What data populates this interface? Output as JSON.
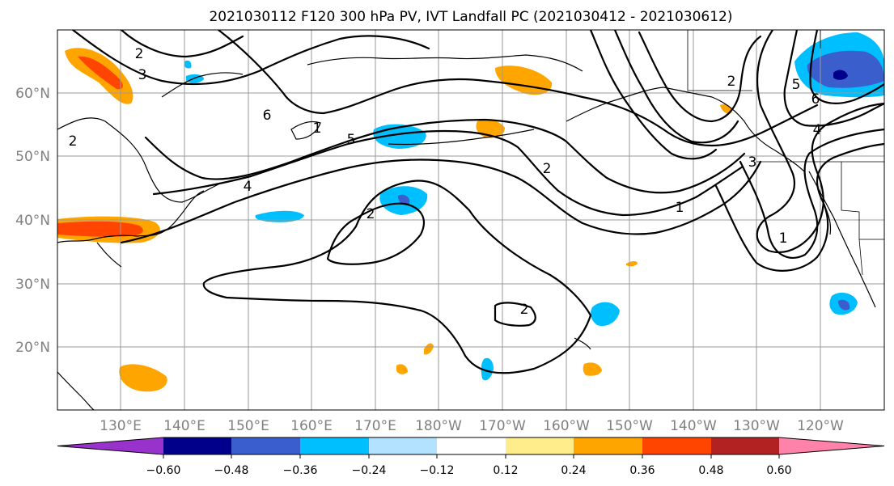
{
  "title": "2021030112 F120 300 hPa PV, IVT Landfall PC (2021030412 - 2021030612)",
  "lat_labels": [
    "60°N",
    "50°N",
    "40°N",
    "30°N",
    "20°N"
  ],
  "lon_labels": [
    "130°E",
    "140°E",
    "150°E",
    "160°E",
    "170°E",
    "180°W",
    "170°W",
    "160°W",
    "150°W",
    "140°W",
    "130°W",
    "120°W"
  ],
  "contour_labels": [
    "2",
    "3",
    "6",
    "5",
    "4",
    "2",
    "2",
    "1",
    "2",
    "6",
    "5",
    "4",
    "3",
    "2",
    "2",
    "1",
    "1"
  ],
  "colorbar": {
    "colors": [
      "#9932cc",
      "#00008b",
      "#3a5fcd",
      "#00bfff",
      "#b2e2ff",
      "#ffffff",
      "#ffec8b",
      "#ffa500",
      "#ff4500",
      "#b22222",
      "#ff82ab"
    ],
    "tick_labels": [
      "−0.60",
      "−0.48",
      "−0.36",
      "−0.24",
      "−0.12",
      "0.12",
      "0.24",
      "0.36",
      "0.48",
      "0.60"
    ]
  }
}
